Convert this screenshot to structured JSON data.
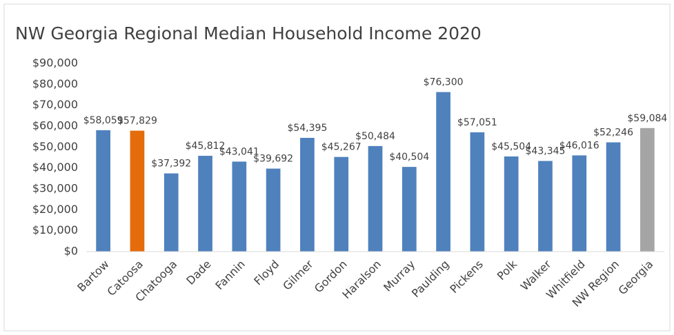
{
  "chart_data": {
    "type": "bar",
    "title": "NW Georgia Regional Median Household Income 2020",
    "categories": [
      "Bartow",
      "Catoosa",
      "Chatooga",
      "Dade",
      "Fannin",
      "Floyd",
      "Gilmer",
      "Gordon",
      "Haralson",
      "Murray",
      "Paulding",
      "Pickens",
      "Polk",
      "Walker",
      "Whitfield",
      "NW Region",
      "Georgia"
    ],
    "values": [
      58059,
      57829,
      37392,
      45812,
      43041,
      39692,
      54395,
      45267,
      50484,
      40504,
      76300,
      57051,
      45504,
      43345,
      46016,
      52246,
      59084
    ],
    "value_labels": [
      "$58,059",
      "$57,829",
      "$37,392",
      "$45,812",
      "$43,041",
      "$39,692",
      "$54,395",
      "$45,267",
      "$50,484",
      "$40,504",
      "$76,300",
      "$57,051",
      "$45,504",
      "$43,345",
      "$46,016",
      "$52,246",
      "$59,084"
    ],
    "colors": [
      "#4f81bd",
      "#e46c0a",
      "#4f81bd",
      "#4f81bd",
      "#4f81bd",
      "#4f81bd",
      "#4f81bd",
      "#4f81bd",
      "#4f81bd",
      "#4f81bd",
      "#4f81bd",
      "#4f81bd",
      "#4f81bd",
      "#4f81bd",
      "#4f81bd",
      "#4f81bd",
      "#a5a5a5"
    ],
    "ylim": [
      0,
      90000
    ],
    "yticks": [
      {
        "value": 0,
        "label": "$0"
      },
      {
        "value": 10000,
        "label": "$10,000"
      },
      {
        "value": 20000,
        "label": "$20,000"
      },
      {
        "value": 30000,
        "label": "$30,000"
      },
      {
        "value": 40000,
        "label": "$40,000"
      },
      {
        "value": 50000,
        "label": "$50,000"
      },
      {
        "value": 60000,
        "label": "$60,000"
      },
      {
        "value": 70000,
        "label": "$70,000"
      },
      {
        "value": 80000,
        "label": "$80,000"
      },
      {
        "value": 90000,
        "label": "$90,000"
      }
    ],
    "grid": false
  }
}
